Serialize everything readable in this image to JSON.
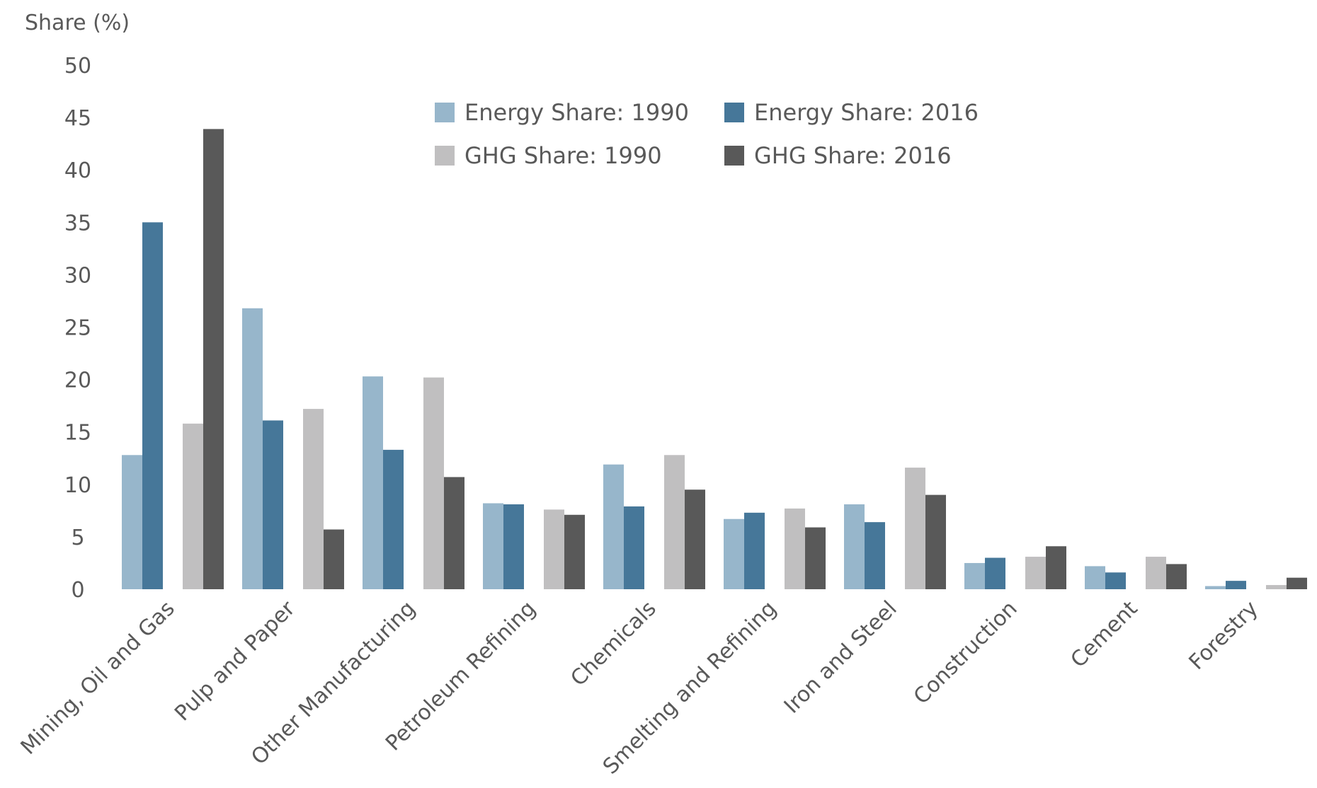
{
  "chart_data": {
    "type": "bar",
    "ylabel": "Share (%)",
    "xlabel": "",
    "ylim": [
      0,
      50
    ],
    "yticks": [
      0,
      5,
      10,
      15,
      20,
      25,
      30,
      35,
      40,
      45,
      50
    ],
    "grid": false,
    "legend_position": "top-center",
    "categories": [
      "Mining, Oil and Gas",
      "Pulp and Paper",
      "Other Manufacturing",
      "Petroleum Refining",
      "Chemicals",
      "Smelting and Refining",
      "Iron and Steel",
      "Construction",
      "Cement",
      "Forestry"
    ],
    "series": [
      {
        "name": "Energy Share: 1990",
        "color": "#97b6cb",
        "values": [
          12.8,
          26.8,
          20.3,
          8.2,
          11.9,
          6.7,
          8.1,
          2.5,
          2.2,
          0.3
        ]
      },
      {
        "name": "Energy Share: 2016",
        "color": "#467799",
        "values": [
          35.0,
          16.1,
          13.3,
          8.1,
          7.9,
          7.3,
          6.4,
          3.0,
          1.6,
          0.8
        ]
      },
      {
        "name": "GHG Share: 1990",
        "color": "#c0bfc0",
        "values": [
          15.8,
          17.2,
          20.2,
          7.6,
          12.8,
          7.7,
          11.6,
          3.1,
          3.1,
          0.4
        ]
      },
      {
        "name": "GHG Share: 2016",
        "color": "#595959",
        "values": [
          43.9,
          5.7,
          10.7,
          7.1,
          9.5,
          5.9,
          9.0,
          4.1,
          2.4,
          1.1
        ]
      }
    ]
  }
}
